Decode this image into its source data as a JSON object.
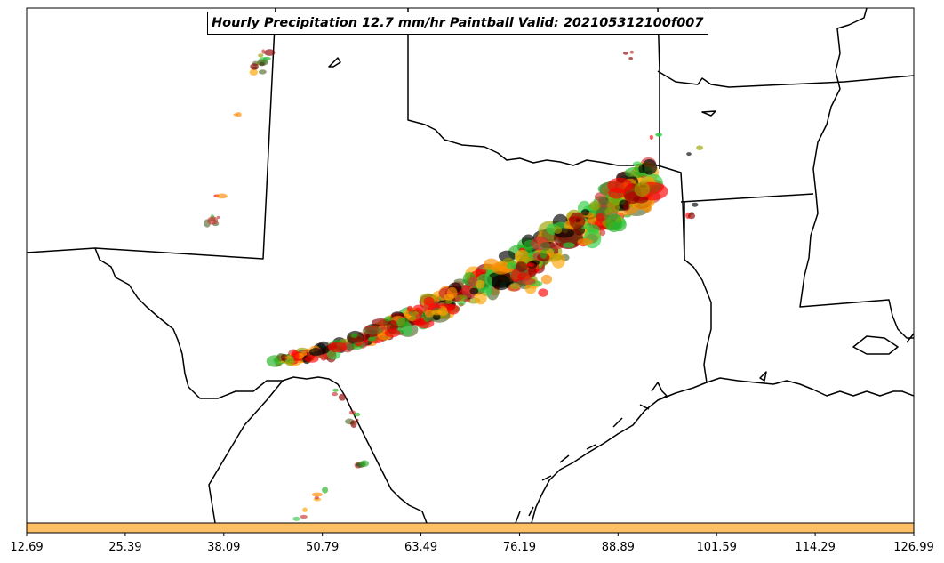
{
  "title": "Hourly Precipitation 12.7 mm/hr Paintball Valid: 202105312100f007",
  "colorbar": {
    "color": "#ffbf66",
    "ticks": [
      "12.69",
      "25.39",
      "38.09",
      "50.79",
      "63.49",
      "76.19",
      "88.89",
      "101.59",
      "114.29",
      "126.99"
    ]
  },
  "member_colors": [
    "#ff0000",
    "#ff8c00",
    "#2ecc40",
    "#556b2f",
    "#8b0000",
    "#9aa000",
    "#000000",
    "#cc3333",
    "#ffa500",
    "#22b022"
  ]
}
